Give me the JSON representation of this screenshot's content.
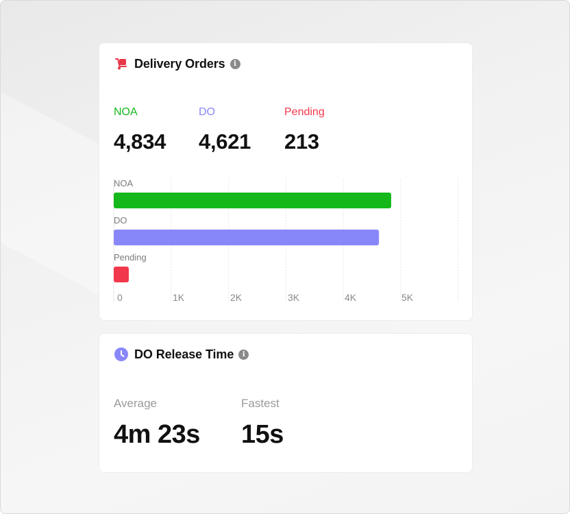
{
  "delivery_orders": {
    "title": "Delivery Orders",
    "icon": "hand-truck-icon",
    "accent_color": "#e8374b",
    "stats": [
      {
        "label": "NOA",
        "value": "4,834",
        "color": "#14b81a"
      },
      {
        "label": "DO",
        "value": "4,621",
        "color": "#8887f9"
      },
      {
        "label": "Pending",
        "value": "213",
        "color": "#f2384c"
      }
    ]
  },
  "chart_data": {
    "type": "bar",
    "orientation": "horizontal",
    "categories": [
      "NOA",
      "DO",
      "Pending"
    ],
    "values": [
      4834,
      4621,
      213
    ],
    "colors": [
      "#14b81a",
      "#8887f9",
      "#f2384c"
    ],
    "xticks": [
      "0",
      "1K",
      "2K",
      "3K",
      "4K",
      "5K"
    ],
    "xlim": [
      0,
      6000
    ],
    "grid": true
  },
  "release_time": {
    "title": "DO Release Time",
    "icon": "clock-icon",
    "accent_color": "#8887f9",
    "stats": [
      {
        "label": "Average",
        "value": "4m 23s"
      },
      {
        "label": "Fastest",
        "value": "15s"
      }
    ]
  }
}
